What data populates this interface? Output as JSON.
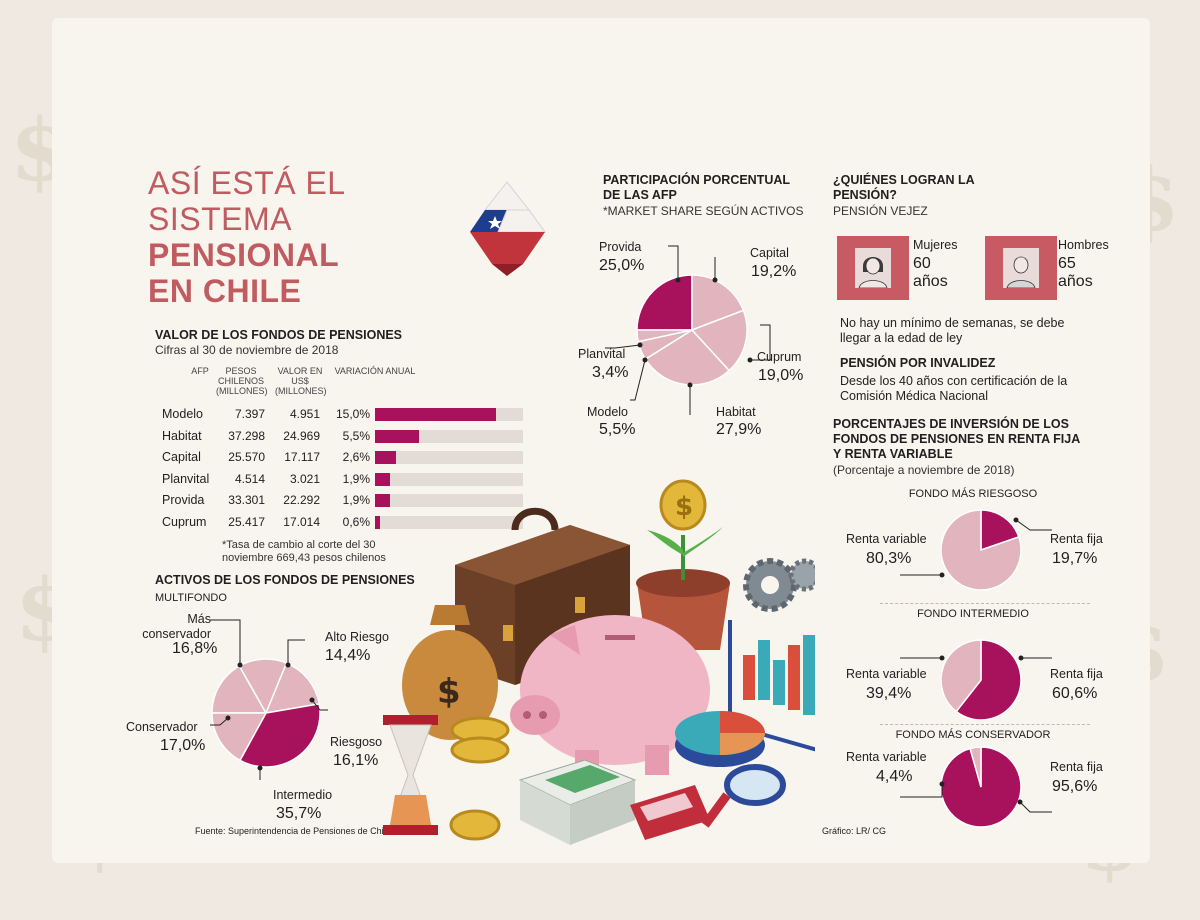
{
  "title": {
    "line1": "ASÍ ESTÁ EL",
    "line2": "SISTEMA",
    "line3": "PENSIONAL",
    "line4": "EN CHILE"
  },
  "valor": {
    "title": "VALOR DE LOS FONDOS DE PENSIONES",
    "subtitle": "Cifras al 30 de noviembre de 2018",
    "headers": {
      "afp": "AFP",
      "pesos": "PESOS CHILENOS (MILLONES)",
      "usd": "VALOR EN US$ (MILLONES)",
      "var": "VARIACIÓN ANUAL"
    },
    "note": "*Tasa de cambio al corte del 30 noviembre 669,43 pesos chilenos"
  },
  "activos": {
    "title": "ACTIVOS DE LOS FONDOS DE PENSIONES",
    "subtitle": "MULTIFONDO"
  },
  "participacion": {
    "title": "PARTICIPACIÓN PORCENTUAL DE LAS AFP",
    "subtitle": "*MARKET SHARE SEGÚN ACTIVOS"
  },
  "quienes": {
    "title": "¿QUIÉNES LOGRAN LA PENSIÓN?",
    "subtitle": "PENSIÓN VEJEZ",
    "mujeres_label": "Mujeres",
    "mujeres_age": "60",
    "mujeres_unit": "años",
    "hombres_label": "Hombres",
    "hombres_age": "65",
    "hombres_unit": "años",
    "note": "No hay un mínimo de semanas, se debe llegar a la edad de ley",
    "invalidez_title": "PENSIÓN POR INVALIDEZ",
    "invalidez_text": "Desde los 40 años con certificación de la Comisión Médica Nacional"
  },
  "porcentajes": {
    "title": "PORCENTAJES DE INVERSIÓN DE LOS FONDOS DE PENSIONES EN RENTA FIJA Y RENTA VARIABLE",
    "subtitle": "(Porcentaje a noviembre de 2018)"
  },
  "footer": {
    "source": "Fuente: Superintendencia de Pensiones de Chile",
    "credit": "Gráfico: LR/ CG"
  },
  "colors": {
    "magenta": "#a8125c",
    "pink": "#e2b4be",
    "title": "#c05b5f",
    "bar_bg": "#e3dcd6"
  },
  "chart_data": [
    {
      "type": "table",
      "rows": [
        {
          "afp": "Modelo",
          "pesos": "7.397",
          "usd": "4.951",
          "var": "15,0%",
          "value": 15.0
        },
        {
          "afp": "Habitat",
          "pesos": "37.298",
          "usd": "24.969",
          "var": "5,5%",
          "value": 5.5
        },
        {
          "afp": "Capital",
          "pesos": "25.570",
          "usd": "17.117",
          "var": "2,6%",
          "value": 2.6
        },
        {
          "afp": "Planvital",
          "pesos": "4.514",
          "usd": "3.021",
          "var": "1,9%",
          "value": 1.9
        },
        {
          "afp": "Provida",
          "pesos": "33.301",
          "usd": "22.292",
          "var": "1,9%",
          "value": 1.9
        },
        {
          "afp": "Cuprum",
          "pesos": "25.417",
          "usd": "17.014",
          "var": "0,6%",
          "value": 0.6
        }
      ],
      "bar_max": 18.3
    },
    {
      "type": "pie",
      "slices": [
        {
          "label": "Provida",
          "value": 25.0,
          "text": "25,0%"
        },
        {
          "label": "Capital",
          "value": 19.2,
          "text": "19,2%"
        },
        {
          "label": "Cuprum",
          "value": 19.0,
          "text": "19,0%"
        },
        {
          "label": "Habitat",
          "value": 27.9,
          "text": "27,9%"
        },
        {
          "label": "Modelo",
          "value": 5.5,
          "text": "5,5%"
        },
        {
          "label": "Planvital",
          "value": 3.4,
          "text": "3,4%"
        }
      ]
    },
    {
      "type": "pie",
      "slices": [
        {
          "label": "Más conservador",
          "value": 16.8,
          "text": "16,8%"
        },
        {
          "label": "Alto Riesgo",
          "value": 14.4,
          "text": "14,4%"
        },
        {
          "label": "Riesgoso",
          "value": 16.1,
          "text": "16,1%"
        },
        {
          "label": "Intermedio",
          "value": 35.7,
          "text": "35,7%"
        },
        {
          "label": "Conservador",
          "value": 17.0,
          "text": "17,0%"
        }
      ]
    },
    {
      "type": "pie",
      "title": "FONDO MÁS RIESGOSO",
      "slices": [
        {
          "label": "Renta fija",
          "value": 19.7,
          "text": "19,7%"
        },
        {
          "label": "Renta variable",
          "value": 80.3,
          "text": "80,3%"
        }
      ]
    },
    {
      "type": "pie",
      "title": "FONDO INTERMEDIO",
      "slices": [
        {
          "label": "Renta fija",
          "value": 60.6,
          "text": "60,6%"
        },
        {
          "label": "Renta variable",
          "value": 39.4,
          "text": "39,4%"
        }
      ]
    },
    {
      "type": "pie",
      "title": "FONDO MÁS CONSERVADOR",
      "slices": [
        {
          "label": "Renta fija",
          "value": 95.6,
          "text": "95,6%"
        },
        {
          "label": "Renta variable",
          "value": 4.4,
          "text": "4,4%"
        }
      ]
    }
  ]
}
